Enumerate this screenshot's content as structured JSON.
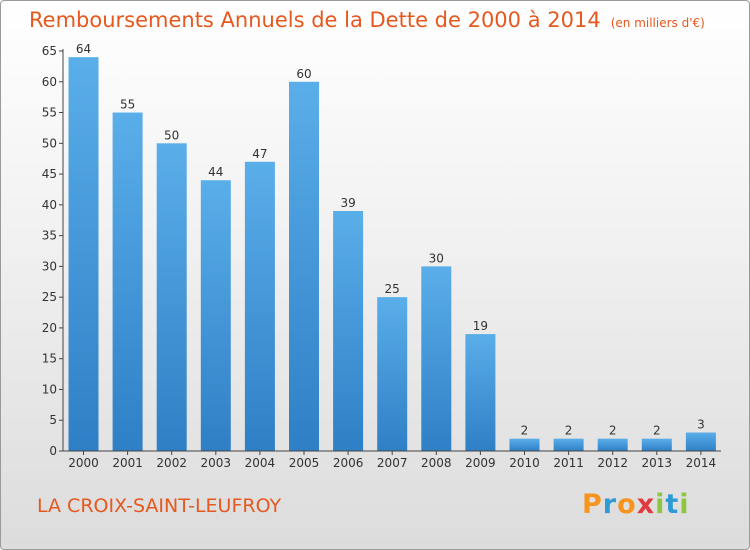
{
  "header": {
    "title": "Remboursements Annuels de la Dette de 2000 à 2014",
    "unit": "(en milliers d'€)"
  },
  "footer": {
    "location": "LA CROIX-SAINT-LEUFROY",
    "brand": "Proxiti"
  },
  "colors": {
    "title": "#e6581e",
    "bar_top": "#5aaee9",
    "bar_bottom": "#2f7fc6",
    "brand_letters": [
      "#f7941d",
      "#2e9bd6",
      "#f7941d",
      "#e03a3e",
      "#8dc63f",
      "#2e9bd6",
      "#8dc63f"
    ]
  },
  "chart_data": {
    "type": "bar",
    "title": "Remboursements Annuels de la Dette de 2000 à 2014",
    "xlabel": "",
    "ylabel": "",
    "categories": [
      "2000",
      "2001",
      "2002",
      "2003",
      "2004",
      "2005",
      "2006",
      "2007",
      "2008",
      "2009",
      "2010",
      "2011",
      "2012",
      "2013",
      "2014"
    ],
    "values": [
      64,
      55,
      50,
      44,
      47,
      60,
      39,
      25,
      30,
      19,
      2,
      2,
      2,
      2,
      3
    ],
    "ylim": [
      0,
      65
    ],
    "yticks": [
      0,
      5,
      10,
      15,
      20,
      25,
      30,
      35,
      40,
      45,
      50,
      55,
      60,
      65
    ],
    "grid": false,
    "data_labels": true
  }
}
